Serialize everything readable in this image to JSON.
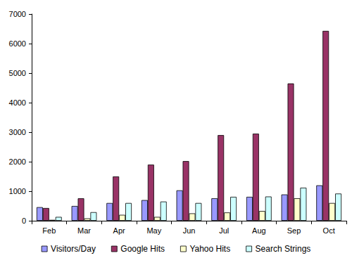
{
  "chart_data": {
    "type": "bar",
    "categories": [
      "Feb",
      "Mar",
      "Apr",
      "May",
      "Jun",
      "Jul",
      "Aug",
      "Sep",
      "Oct"
    ],
    "series": [
      {
        "name": "Visitors/Day",
        "color": "#9999ff",
        "values": [
          460,
          500,
          600,
          700,
          1030,
          760,
          810,
          890,
          1200
        ]
      },
      {
        "name": "Google Hits",
        "color": "#993366",
        "values": [
          430,
          760,
          1500,
          1900,
          2020,
          2900,
          2950,
          4650,
          6430
        ]
      },
      {
        "name": "Yahoo Hits",
        "color": "#ffffcc",
        "values": [
          30,
          80,
          200,
          130,
          250,
          280,
          330,
          760,
          600
        ]
      },
      {
        "name": "Search Strings",
        "color": "#ccffff",
        "values": [
          130,
          290,
          600,
          650,
          600,
          810,
          820,
          1120,
          920
        ]
      }
    ],
    "ylim": [
      0,
      7000
    ],
    "yticks": [
      0,
      1000,
      2000,
      3000,
      4000,
      5000,
      6000,
      7000
    ],
    "grid": false,
    "legend": "bottom"
  }
}
